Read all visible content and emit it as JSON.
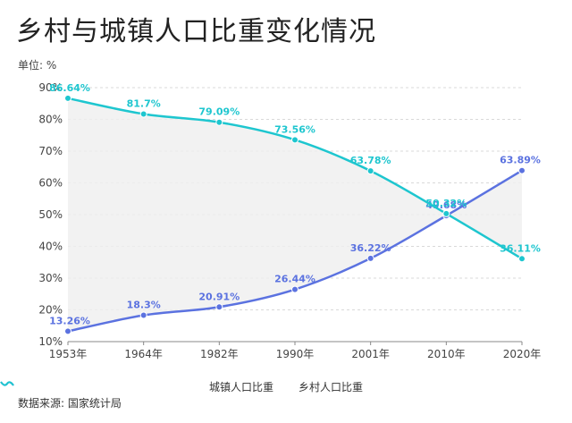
{
  "header": {
    "title": "乡村与城镇人口比重变化情况"
  },
  "unit_label": "单位: %",
  "source_label": "数据来源: 国家统计局",
  "colors": {
    "urban": "#5b72e0",
    "rural": "#1ec6cf",
    "band": "#efefef",
    "grid": "#d9d9d9"
  },
  "chart_data": {
    "type": "line",
    "title": "乡村与城镇人口比重变化情况",
    "ylabel": "单位: %",
    "x": [
      "1953年",
      "1964年",
      "1982年",
      "1990年",
      "2001年",
      "2010年",
      "2020年"
    ],
    "ylim": [
      10,
      90
    ],
    "yticks": [
      "10%",
      "20%",
      "30%",
      "40%",
      "50%",
      "60%",
      "70%",
      "80%",
      "90%"
    ],
    "grid": true,
    "legend_position": "bottom",
    "series": [
      {
        "name": "城镇人口比重",
        "values": [
          13.26,
          18.3,
          20.91,
          26.44,
          36.22,
          49.68,
          63.89
        ],
        "labels": [
          "13.26%",
          "18.3%",
          "20.91%",
          "26.44%",
          "36.22%",
          "49.68%",
          "63.89%"
        ]
      },
      {
        "name": "乡村人口比重",
        "values": [
          86.64,
          81.7,
          79.09,
          73.56,
          63.78,
          50.32,
          36.11
        ],
        "labels": [
          "86.64%",
          "81.7%",
          "79.09%",
          "73.56%",
          "63.78%",
          "50.32%",
          "36.11%"
        ]
      }
    ]
  }
}
